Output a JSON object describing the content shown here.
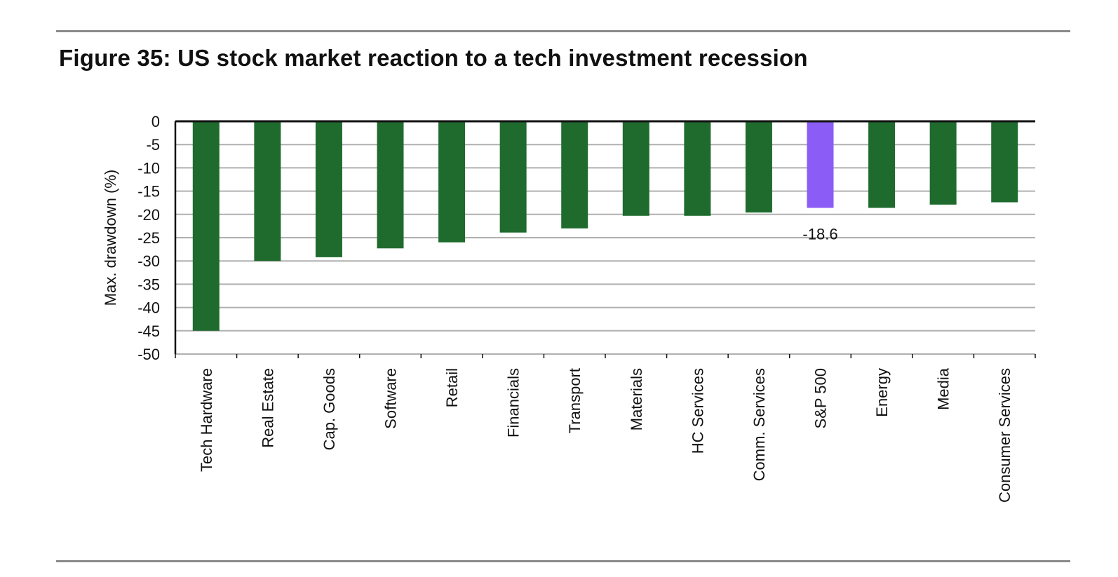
{
  "figure_title": "Figure 35: US stock market reaction to a tech investment recession",
  "colors": {
    "bar": "#1f6b2e",
    "highlight": "#8b5cf6",
    "grid": "#b0b0b0",
    "axis": "#111111",
    "rule": "#8a8a8a"
  },
  "chart_data": {
    "type": "bar",
    "title": "Figure 35: US stock market reaction to a tech investment recession",
    "xlabel": "",
    "ylabel": "Max. drawdown (%)",
    "ylim": [
      -50,
      0
    ],
    "yticks": [
      0,
      -5,
      -10,
      -15,
      -20,
      -25,
      -30,
      -35,
      -40,
      -45,
      -50
    ],
    "grid": true,
    "categories": [
      "Tech Hardware",
      "Real Estate",
      "Cap. Goods",
      "Software",
      "Retail",
      "Financials",
      "Transport",
      "Materials",
      "HC Services",
      "Comm. Services",
      "S&P 500",
      "Energy",
      "Media",
      "Consumer Services"
    ],
    "values": [
      -45.0,
      -30.0,
      -29.2,
      -27.3,
      -26.0,
      -23.9,
      -23.0,
      -20.3,
      -20.3,
      -19.6,
      -18.6,
      -18.6,
      -17.9,
      -17.4
    ],
    "highlight_index": 10,
    "data_labels": [
      {
        "index": 10,
        "text": "-18.6"
      }
    ]
  }
}
